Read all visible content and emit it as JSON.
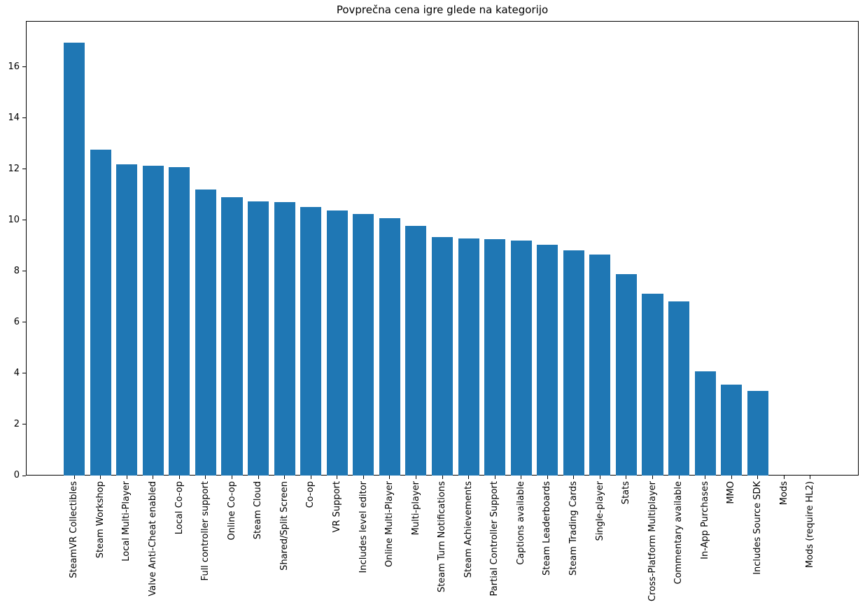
{
  "figure": {
    "background": "#ffffff"
  },
  "chart_data": {
    "type": "bar",
    "title": "Povprečna cena igre glede na kategorijo",
    "xlabel": "",
    "ylabel": "",
    "categories": [
      "SteamVR Collectibles",
      "Steam Workshop",
      "Local Multi-Player",
      "Valve Anti-Cheat enabled",
      "Local Co-op",
      "Full controller support",
      "Online Co-op",
      "Steam Cloud",
      "Shared/Split Screen",
      "Co-op",
      "VR Support",
      "Includes level editor",
      "Online Multi-Player",
      "Multi-player",
      "Steam Turn Notifications",
      "Steam Achievements",
      "Partial Controller Support",
      "Captions available",
      "Steam Leaderboards",
      "Steam Trading Cards",
      "Single-player",
      "Stats",
      "Cross-Platform Multiplayer",
      "Commentary available",
      "In-App Purchases",
      "MMO",
      "Includes Source SDK",
      "Mods",
      "Mods (require HL2)"
    ],
    "values": [
      16.95,
      12.75,
      12.19,
      12.12,
      12.08,
      11.21,
      10.89,
      10.73,
      10.71,
      10.52,
      10.37,
      10.24,
      10.08,
      9.78,
      9.35,
      9.29,
      9.25,
      9.2,
      9.04,
      8.82,
      8.66,
      7.88,
      7.11,
      6.83,
      4.07,
      3.55,
      3.32,
      0,
      0
    ],
    "ylim": [
      0,
      17.8
    ],
    "yticks": [
      0,
      2,
      4,
      6,
      8,
      10,
      12,
      14,
      16
    ],
    "x_tick_rotation": 90,
    "grid": false,
    "legend": null,
    "bar_color": "#1f77b4",
    "axis_color": "#000000",
    "background_color": "#ffffff"
  }
}
